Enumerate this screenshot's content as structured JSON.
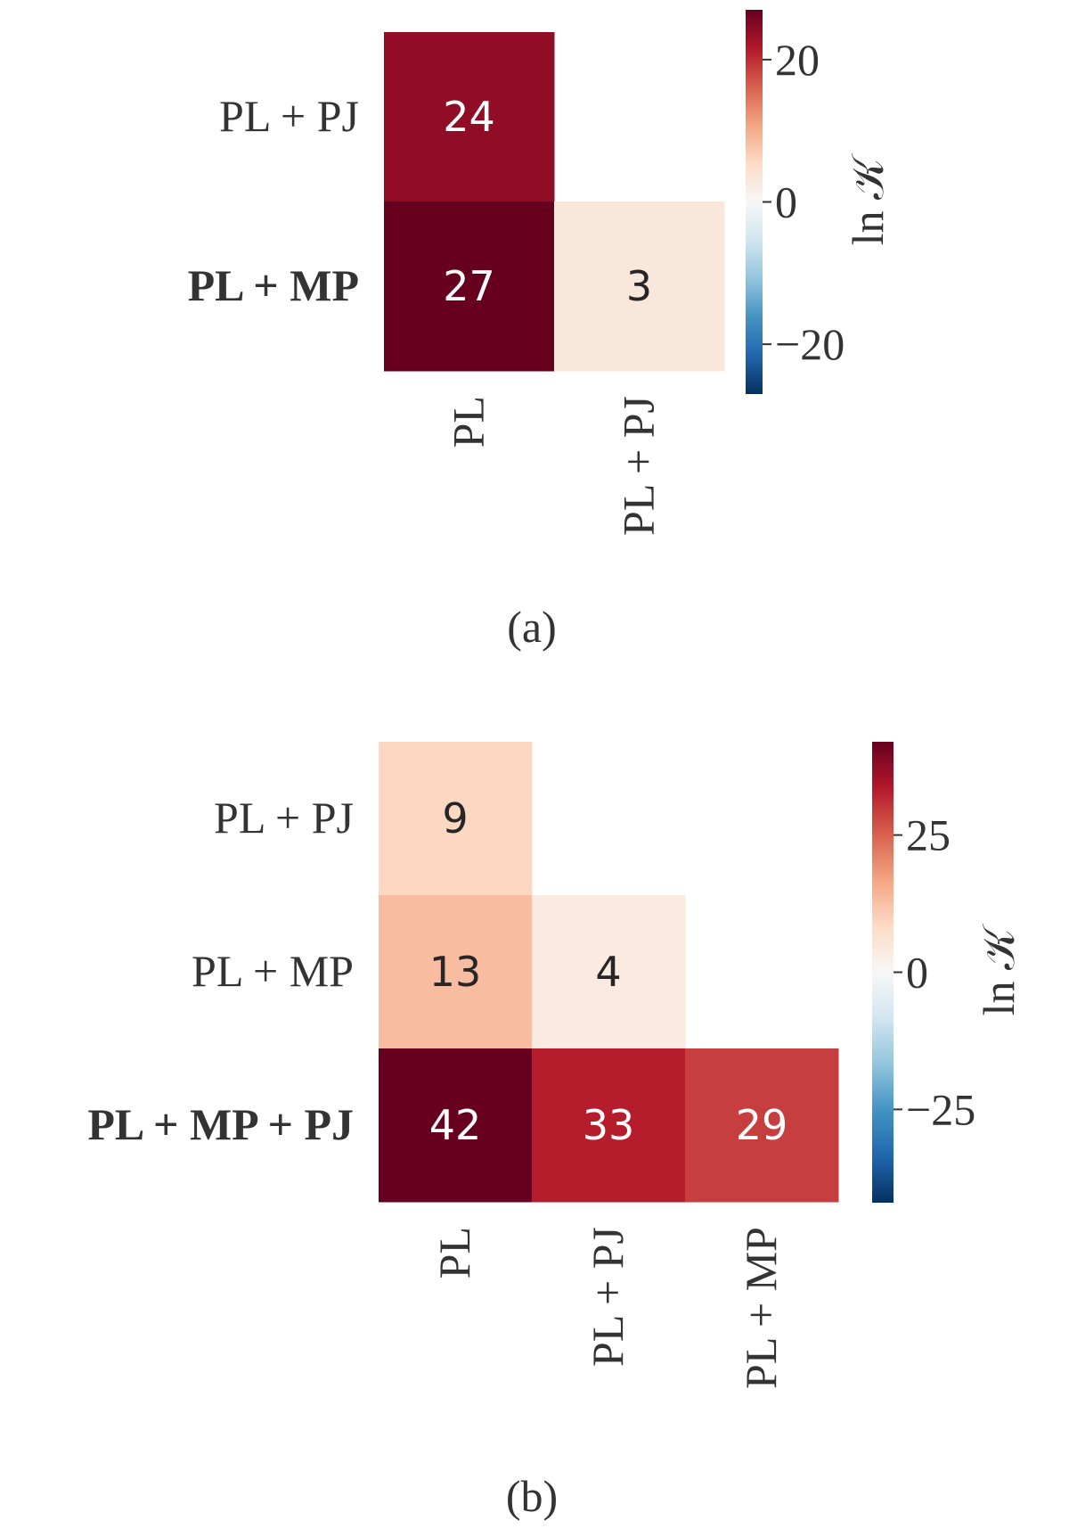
{
  "chart_data": [
    {
      "type": "heatmap",
      "caption": "(a)",
      "rows": [
        "PL + PJ",
        "PL + MP"
      ],
      "columns": [
        "PL",
        "PL + PJ"
      ],
      "values": [
        [
          24,
          null
        ],
        [
          27,
          3
        ]
      ],
      "highlight_row": 1,
      "colormap": "RdBu_r",
      "clim": [
        -27,
        27
      ],
      "cticks": [
        {
          "value": -20,
          "label": "−20"
        },
        0,
        20
      ],
      "colorbar_label": "ln 𝒦"
    },
    {
      "type": "heatmap",
      "caption": "(b)",
      "rows": [
        "PL + PJ",
        "PL + MP",
        "PL + MP + PJ"
      ],
      "columns": [
        "PL",
        "PL + PJ",
        "PL + MP"
      ],
      "values": [
        [
          9,
          null,
          null
        ],
        [
          13,
          4,
          null
        ],
        [
          42,
          33,
          29
        ]
      ],
      "highlight_row": 2,
      "colormap": "RdBu_r",
      "clim": [
        -42,
        42
      ],
      "cticks": [
        {
          "value": -25,
          "label": "−25"
        },
        0,
        25
      ],
      "colorbar_label": "ln 𝒦"
    }
  ]
}
